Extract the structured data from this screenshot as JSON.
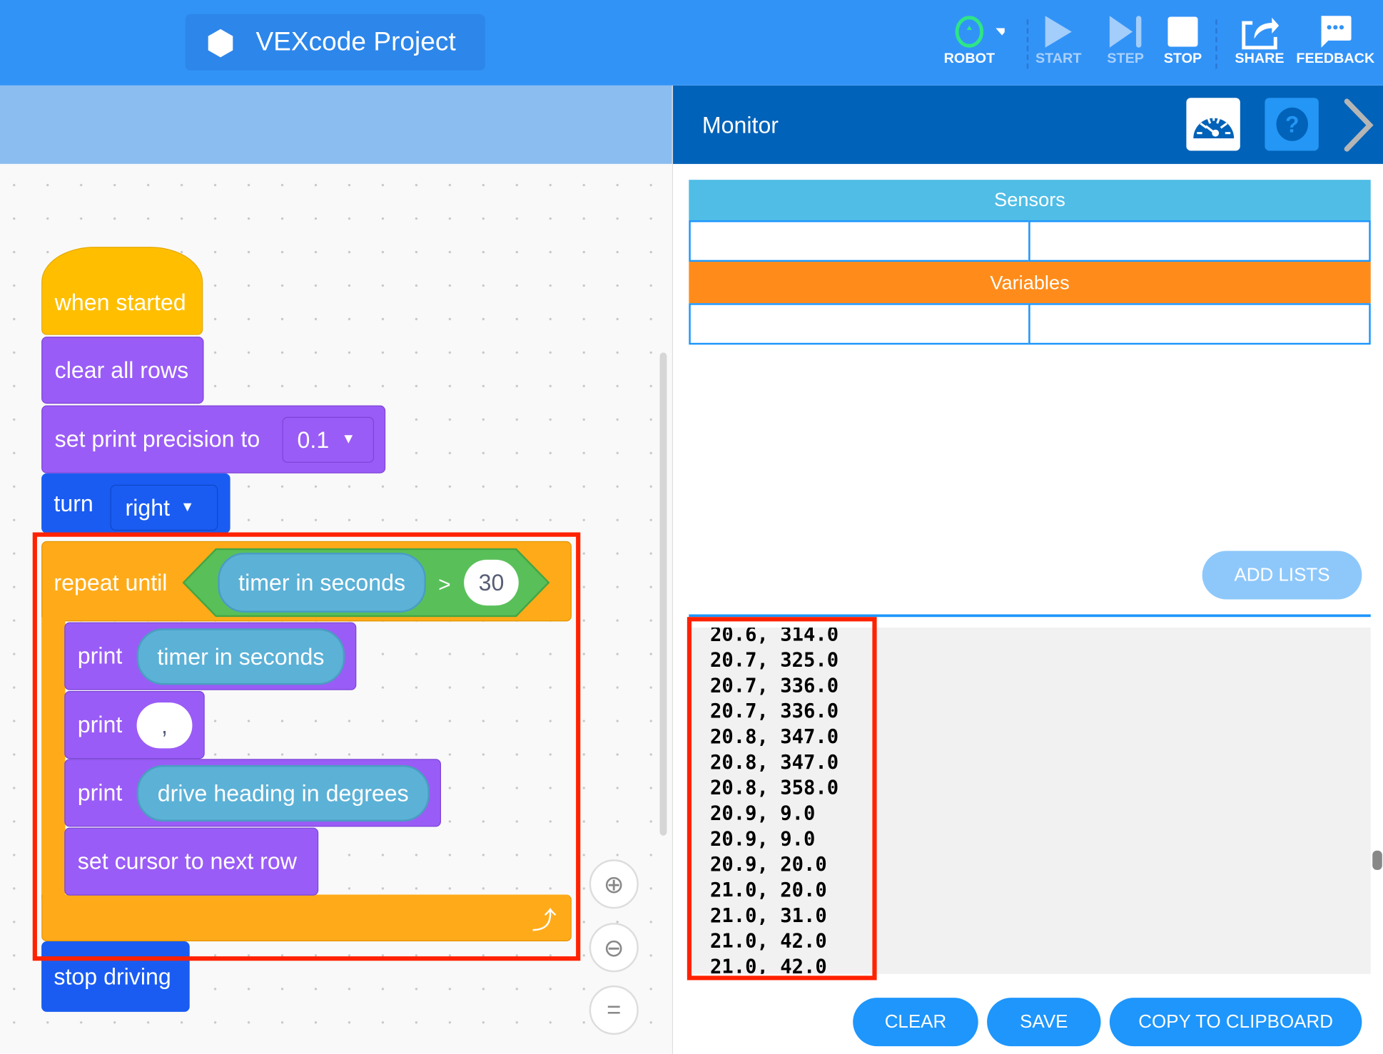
{
  "app": {
    "title": "VEXcode Project"
  },
  "toolbar": {
    "robot": "ROBOT",
    "start": "START",
    "step": "STEP",
    "stop": "STOP",
    "share": "SHARE",
    "feedback": "FEEDBACK"
  },
  "colors": {
    "topbar": "#3293f7",
    "monitor_header": "#0062b8",
    "sensors": "#4fbde6",
    "variables": "#ff8c1a",
    "event_block": "#ffbf00",
    "looks_block": "#9a5cf6",
    "drive_block": "#1a5cf2",
    "control_block": "#ffab19",
    "operator_block": "#59c059",
    "sensing_reporter": "#5cb1d6",
    "highlight": "#ff2200"
  },
  "blocks": {
    "when_started": "when started",
    "clear_all_rows": "clear all rows",
    "set_print_precision": "set print precision to",
    "precision_value": "0.1",
    "turn": "turn",
    "turn_direction": "right",
    "repeat_until": "repeat until",
    "timer_reporter": "timer in seconds",
    "operator": ">",
    "compare_value": "30",
    "print1": "print",
    "print1_value": "timer in seconds",
    "print2": "print",
    "print2_value": ",",
    "print3": "print",
    "print3_value": "drive heading in degrees",
    "set_cursor": "set cursor to next row",
    "stop_driving": "stop driving"
  },
  "monitor": {
    "title": "Monitor",
    "sensors_label": "Sensors",
    "variables_label": "Variables",
    "add_lists": "ADD LISTS",
    "console_lines": [
      "20.6, 314.0",
      "20.7, 325.0",
      "20.7, 336.0",
      "20.7, 336.0",
      "20.8, 347.0",
      "20.8, 347.0",
      "20.8, 358.0",
      "20.9, 9.0",
      "20.9, 9.0",
      "20.9, 20.0",
      "21.0, 20.0",
      "21.0, 31.0",
      "21.0, 42.0",
      "21.0, 42.0"
    ],
    "clear": "CLEAR",
    "save": "SAVE",
    "copy": "COPY TO CLIPBOARD"
  },
  "zoom_controls": {
    "reset": "="
  }
}
